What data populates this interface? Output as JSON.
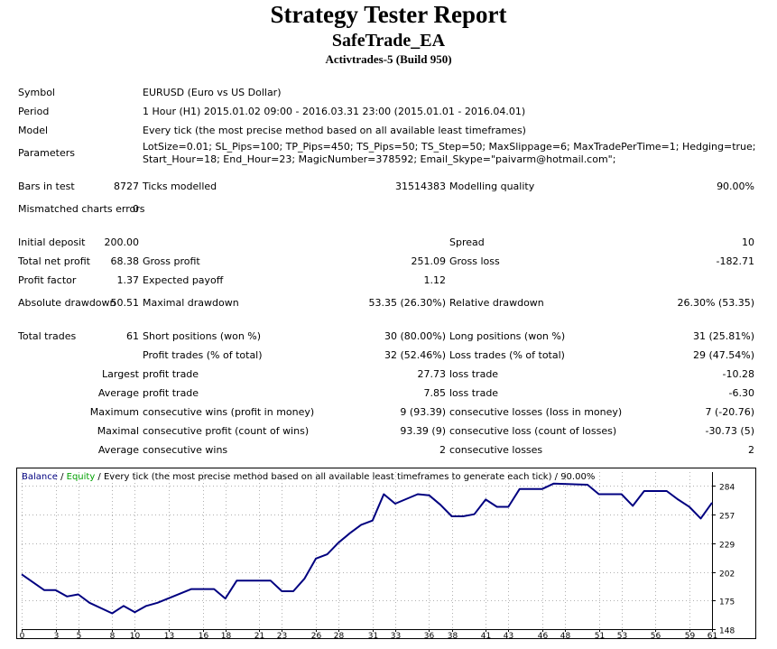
{
  "header": {
    "title": "Strategy Tester Report",
    "ea_name": "SafeTrade_EA",
    "server_build": "Activtrades-5 (Build 950)"
  },
  "info": {
    "symbol_label": "Symbol",
    "symbol_value": "EURUSD (Euro vs US Dollar)",
    "period_label": "Period",
    "period_value": "1 Hour (H1) 2015.01.02 09:00 - 2016.03.31 23:00 (2015.01.01 - 2016.04.01)",
    "model_label": "Model",
    "model_value": "Every tick (the most precise method based on all available least timeframes)",
    "parameters_label": "Parameters",
    "parameters_line1": "LotSize=0.01; SL_Pips=100; TP_Pips=450; TS_Pips=50; TS_Step=50; MaxSlippage=6; MaxTradePerTime=1; Hedging=true;",
    "parameters_line2": "Start_Hour=18; End_Hour=23; MagicNumber=378592; Email_Skype=\"paivarm@hotmail.com\";"
  },
  "stats": {
    "bars_label": "Bars in test",
    "bars_value": "8727",
    "ticks_label": "Ticks modelled",
    "ticks_value": "31514383",
    "quality_label": "Modelling quality",
    "quality_value": "90.00%",
    "mismatch_label": "Mismatched charts errors",
    "mismatch_value": "0",
    "deposit_label": "Initial deposit",
    "deposit_value": "200.00",
    "spread_label": "Spread",
    "spread_value": "10",
    "netprofit_label": "Total net profit",
    "netprofit_value": "68.38",
    "grossprofit_label": "Gross profit",
    "grossprofit_value": "251.09",
    "grossloss_label": "Gross loss",
    "grossloss_value": "-182.71",
    "pf_label": "Profit factor",
    "pf_value": "1.37",
    "payoff_label": "Expected payoff",
    "payoff_value": "1.12",
    "absdd_label": "Absolute drawdown",
    "absdd_value": "50.51",
    "maxdd_label": "Maximal drawdown",
    "maxdd_value": "53.35 (26.30%)",
    "reldd_label": "Relative drawdown",
    "reldd_value": "26.30% (53.35)",
    "trades_label": "Total trades",
    "trades_value": "61",
    "short_label": "Short positions (won %)",
    "short_value": "30 (80.00%)",
    "long_label": "Long positions (won %)",
    "long_value": "31 (25.81%)",
    "ptrades_label": "Profit trades (% of total)",
    "ptrades_value": "32 (52.46%)",
    "ltrades_label": "Loss trades (% of total)",
    "ltrades_value": "29 (47.54%)",
    "largest_label": "Largest",
    "profit_trade_label": "profit trade",
    "largest_profit_value": "27.73",
    "loss_trade_label": "loss trade",
    "largest_loss_value": "-10.28",
    "average_label": "Average",
    "avg_profit_label": "profit trade",
    "avg_profit_value": "7.85",
    "avg_loss_label": "loss trade",
    "avg_loss_value": "-6.30",
    "maximum_label": "Maximum",
    "max_cw_label": "consecutive wins (profit in money)",
    "max_cw_value": "9 (93.39)",
    "max_cl_label": "consecutive losses (loss in money)",
    "max_cl_value": "7 (-20.76)",
    "maximal_label": "Maximal",
    "maximal_cp_label": "consecutive profit (count of wins)",
    "maximal_cp_value": "93.39 (9)",
    "maximal_cl_label": "consecutive loss (count of losses)",
    "maximal_cl_value": "-30.73 (5)",
    "average2_label": "Average",
    "avg_cw_label": "consecutive wins",
    "avg_cw_value": "2",
    "avg_cl_label": "consecutive losses",
    "avg_cl_value": "2"
  },
  "chart_data": {
    "type": "line",
    "caption_balance": "Balance",
    "caption_sep1": " / ",
    "caption_equity": "Equity",
    "caption_rest": " / Every tick (the most precise method based on all available least timeframes to generate each tick) / 90.00%",
    "series": [
      {
        "name": "Balance",
        "color": "#000080",
        "x": [
          0,
          2,
          3,
          4,
          5,
          6,
          8,
          9,
          10,
          11,
          12,
          15,
          16,
          17,
          18,
          19,
          22,
          23,
          24,
          25,
          26,
          27,
          28,
          29,
          30,
          31,
          32,
          33,
          35,
          36,
          37,
          38,
          39,
          40,
          41,
          42,
          43,
          44,
          46,
          47,
          50,
          51,
          53,
          54,
          55,
          56,
          57,
          58,
          59,
          60,
          61
        ],
        "y": [
          200,
          185,
          185,
          179,
          181,
          173,
          163,
          170,
          164,
          170,
          173,
          186,
          186,
          186,
          177,
          194,
          194,
          184,
          184,
          196,
          215,
          219,
          230,
          239,
          247,
          251,
          276,
          267,
          276,
          275,
          266,
          255,
          255,
          257,
          271,
          264,
          264,
          281,
          281,
          286,
          285,
          276,
          276,
          265,
          279,
          279,
          279,
          271,
          264,
          253,
          268
        ]
      }
    ],
    "x_ticks": [
      0,
      3,
      5,
      8,
      10,
      13,
      16,
      18,
      21,
      23,
      26,
      28,
      31,
      33,
      36,
      38,
      41,
      43,
      46,
      48,
      51,
      53,
      56,
      59,
      61
    ],
    "y_ticks": [
      148,
      175,
      202,
      229,
      257,
      284
    ],
    "xlim": [
      0,
      61
    ],
    "ylim": [
      148,
      297
    ],
    "grid": true
  }
}
